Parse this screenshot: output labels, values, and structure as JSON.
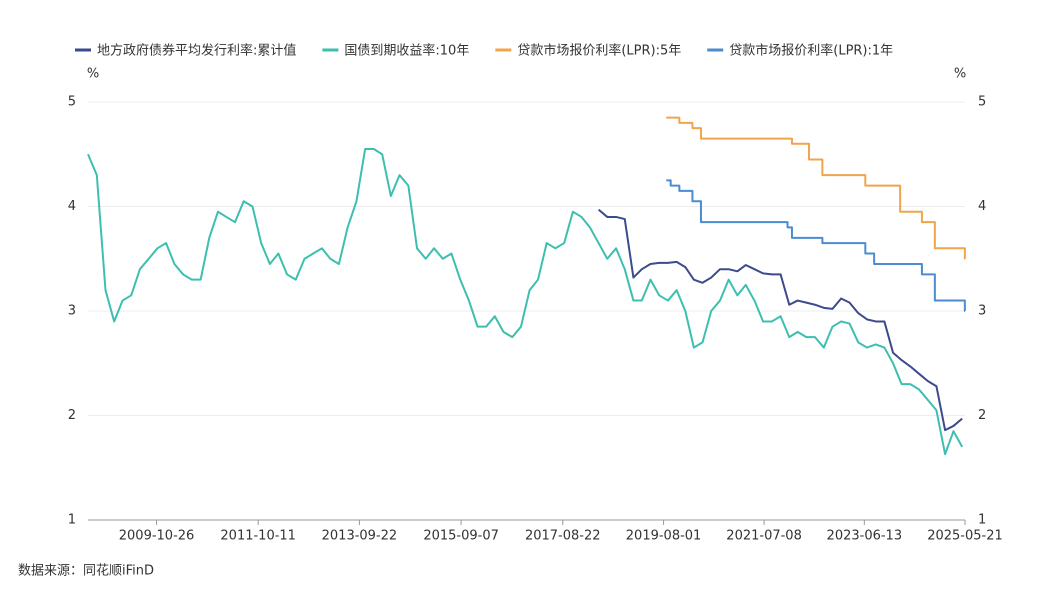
{
  "chart_data": {
    "type": "line",
    "y_unit": "%",
    "y2_unit": "%",
    "source": "数据来源：同花顺iFinD",
    "xlim": [
      "2008-07-01",
      "2025-05-21"
    ],
    "xticks": [
      "2009-10-26",
      "2011-10-11",
      "2013-09-22",
      "2015-09-07",
      "2017-08-22",
      "2019-08-01",
      "2021-07-08",
      "2023-06-13",
      "2025-05-21"
    ],
    "ylim": [
      1,
      5
    ],
    "yticks": [
      1,
      2,
      3,
      4,
      5
    ],
    "y2lim": [
      1,
      5
    ],
    "y2ticks": [
      1,
      2,
      3,
      4,
      5
    ],
    "grid": true,
    "legend": "top",
    "series": [
      {
        "name": "地方政府债券平均发行利率:累计值",
        "color": "#3d4a8c",
        "x": [
          "2018-05-01",
          "2018-07-01",
          "2018-09-01",
          "2018-11-01",
          "2019-01-01",
          "2019-03-01",
          "2019-05-01",
          "2019-07-01",
          "2019-09-01",
          "2019-11-01",
          "2020-01-01",
          "2020-03-01",
          "2020-05-01",
          "2020-07-01",
          "2020-09-01",
          "2020-11-01",
          "2021-01-01",
          "2021-03-01",
          "2021-05-01",
          "2021-07-01",
          "2021-09-01",
          "2021-11-01",
          "2022-01-01",
          "2022-03-01",
          "2022-05-01",
          "2022-07-01",
          "2022-09-01",
          "2022-11-01",
          "2023-01-01",
          "2023-03-01",
          "2023-05-01",
          "2023-07-01",
          "2023-09-01",
          "2023-11-01",
          "2024-01-01",
          "2024-03-01",
          "2024-05-01",
          "2024-07-01",
          "2024-09-01",
          "2024-11-01",
          "2025-01-01",
          "2025-03-01",
          "2025-05-01"
        ],
        "values": [
          3.97,
          3.9,
          3.9,
          3.88,
          3.32,
          3.4,
          3.45,
          3.46,
          3.46,
          3.47,
          3.42,
          3.3,
          3.27,
          3.32,
          3.4,
          3.4,
          3.38,
          3.44,
          3.4,
          3.36,
          3.35,
          3.35,
          3.06,
          3.1,
          3.08,
          3.06,
          3.03,
          3.02,
          3.12,
          3.08,
          2.98,
          2.92,
          2.9,
          2.9,
          2.6,
          2.53,
          2.47,
          2.4,
          2.33,
          2.28,
          1.86,
          1.9,
          1.97
        ]
      },
      {
        "name": "国债到期收益率:10年",
        "color": "#3dbfb0",
        "x": [
          "2008-07-01",
          "2008-09-01",
          "2008-11-01",
          "2009-01-01",
          "2009-03-01",
          "2009-05-01",
          "2009-07-01",
          "2009-09-01",
          "2009-11-01",
          "2010-01-01",
          "2010-03-01",
          "2010-05-01",
          "2010-07-01",
          "2010-09-01",
          "2010-11-01",
          "2011-01-01",
          "2011-03-01",
          "2011-05-01",
          "2011-07-01",
          "2011-09-01",
          "2011-11-01",
          "2012-01-01",
          "2012-03-01",
          "2012-05-01",
          "2012-07-01",
          "2012-09-01",
          "2012-11-01",
          "2013-01-01",
          "2013-03-01",
          "2013-05-01",
          "2013-07-01",
          "2013-09-01",
          "2013-11-01",
          "2014-01-01",
          "2014-03-01",
          "2014-05-01",
          "2014-07-01",
          "2014-09-01",
          "2014-11-01",
          "2015-01-01",
          "2015-03-01",
          "2015-05-01",
          "2015-07-01",
          "2015-09-01",
          "2015-11-01",
          "2016-01-01",
          "2016-03-01",
          "2016-05-01",
          "2016-07-01",
          "2016-09-01",
          "2016-11-01",
          "2017-01-01",
          "2017-03-01",
          "2017-05-01",
          "2017-07-01",
          "2017-09-01",
          "2017-11-01",
          "2018-01-01",
          "2018-03-01",
          "2018-05-01",
          "2018-07-01",
          "2018-09-01",
          "2018-11-01",
          "2019-01-01",
          "2019-03-01",
          "2019-05-01",
          "2019-07-01",
          "2019-09-01",
          "2019-11-01",
          "2020-01-01",
          "2020-03-01",
          "2020-05-01",
          "2020-07-01",
          "2020-09-01",
          "2020-11-01",
          "2021-01-01",
          "2021-03-01",
          "2021-05-01",
          "2021-07-01",
          "2021-09-01",
          "2021-11-01",
          "2022-01-01",
          "2022-03-01",
          "2022-05-01",
          "2022-07-01",
          "2022-09-01",
          "2022-11-01",
          "2023-01-01",
          "2023-03-01",
          "2023-05-01",
          "2023-07-01",
          "2023-09-01",
          "2023-11-01",
          "2024-01-01",
          "2024-03-01",
          "2024-05-01",
          "2024-07-01",
          "2024-09-01",
          "2024-11-01",
          "2025-01-01",
          "2025-03-01",
          "2025-05-01"
        ],
        "values": [
          4.5,
          4.3,
          3.2,
          2.9,
          3.1,
          3.15,
          3.4,
          3.5,
          3.6,
          3.65,
          3.45,
          3.35,
          3.3,
          3.3,
          3.7,
          3.95,
          3.9,
          3.85,
          4.05,
          4.0,
          3.65,
          3.45,
          3.55,
          3.35,
          3.3,
          3.5,
          3.55,
          3.6,
          3.5,
          3.45,
          3.8,
          4.05,
          4.55,
          4.55,
          4.5,
          4.1,
          4.3,
          4.2,
          3.6,
          3.5,
          3.6,
          3.5,
          3.55,
          3.3,
          3.1,
          2.85,
          2.85,
          2.95,
          2.8,
          2.75,
          2.85,
          3.2,
          3.3,
          3.65,
          3.6,
          3.65,
          3.95,
          3.9,
          3.8,
          3.65,
          3.5,
          3.6,
          3.4,
          3.1,
          3.1,
          3.3,
          3.15,
          3.1,
          3.2,
          3.0,
          2.65,
          2.7,
          3.0,
          3.1,
          3.3,
          3.15,
          3.25,
          3.1,
          2.9,
          2.9,
          2.95,
          2.75,
          2.8,
          2.75,
          2.75,
          2.65,
          2.85,
          2.9,
          2.88,
          2.7,
          2.65,
          2.68,
          2.65,
          2.5,
          2.3,
          2.3,
          2.25,
          2.15,
          2.05,
          1.63,
          1.85,
          1.7
        ]
      },
      {
        "name": "贷款市场报价利率(LPR):5年",
        "color": "#f0a44c",
        "step": true,
        "x": [
          "2019-08-20",
          "2019-11-20",
          "2020-02-20",
          "2020-04-20",
          "2022-01-20",
          "2022-05-20",
          "2022-08-22",
          "2023-06-20",
          "2024-02-20",
          "2024-07-22",
          "2024-10-21",
          "2025-05-20"
        ],
        "values": [
          4.85,
          4.8,
          4.75,
          4.65,
          4.6,
          4.45,
          4.3,
          4.2,
          3.95,
          3.85,
          3.6,
          3.5
        ]
      },
      {
        "name": "贷款市场报价利率(LPR):1年",
        "color": "#4a8bd1",
        "step": true,
        "x": [
          "2019-08-20",
          "2019-09-20",
          "2019-11-20",
          "2020-02-20",
          "2020-04-20",
          "2021-12-20",
          "2022-01-20",
          "2022-08-22",
          "2023-06-20",
          "2023-08-21",
          "2024-07-22",
          "2024-10-21",
          "2025-05-20"
        ],
        "values": [
          4.25,
          4.2,
          4.15,
          4.05,
          3.85,
          3.8,
          3.7,
          3.65,
          3.55,
          3.45,
          3.35,
          3.1,
          3.0
        ]
      }
    ]
  }
}
